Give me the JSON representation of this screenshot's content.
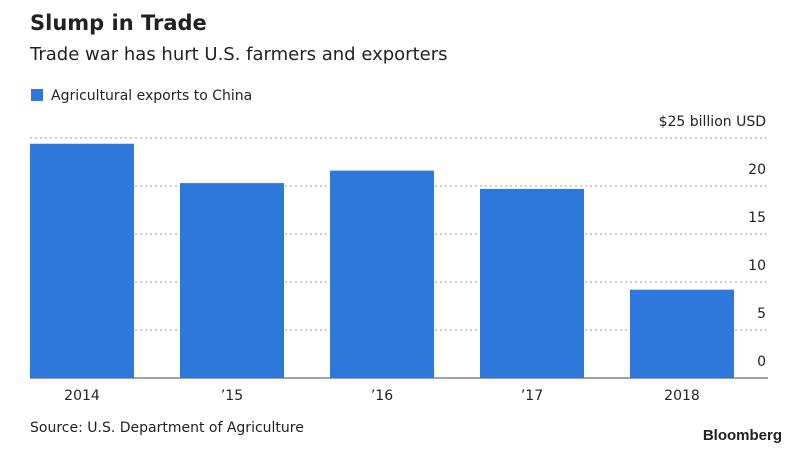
{
  "chart_data": {
    "type": "bar",
    "title": "Slump in Trade",
    "subtitle": "Trade war has hurt U.S. farmers and exporters",
    "categories": [
      "2014",
      "’15",
      "’16",
      "’17",
      "2018"
    ],
    "series": [
      {
        "name": "Agricultural exports to China",
        "color": "#2e78dc",
        "values": [
          24.4,
          20.3,
          21.6,
          19.7,
          9.2
        ]
      }
    ],
    "ylim": [
      0,
      25
    ],
    "yticks": [
      0,
      5,
      10,
      15,
      20,
      {
        "value": 25,
        "label": "$25 billion USD"
      }
    ],
    "grid": true,
    "source": "Source: U.S. Department of Agriculture",
    "brand": "Bloomberg"
  }
}
